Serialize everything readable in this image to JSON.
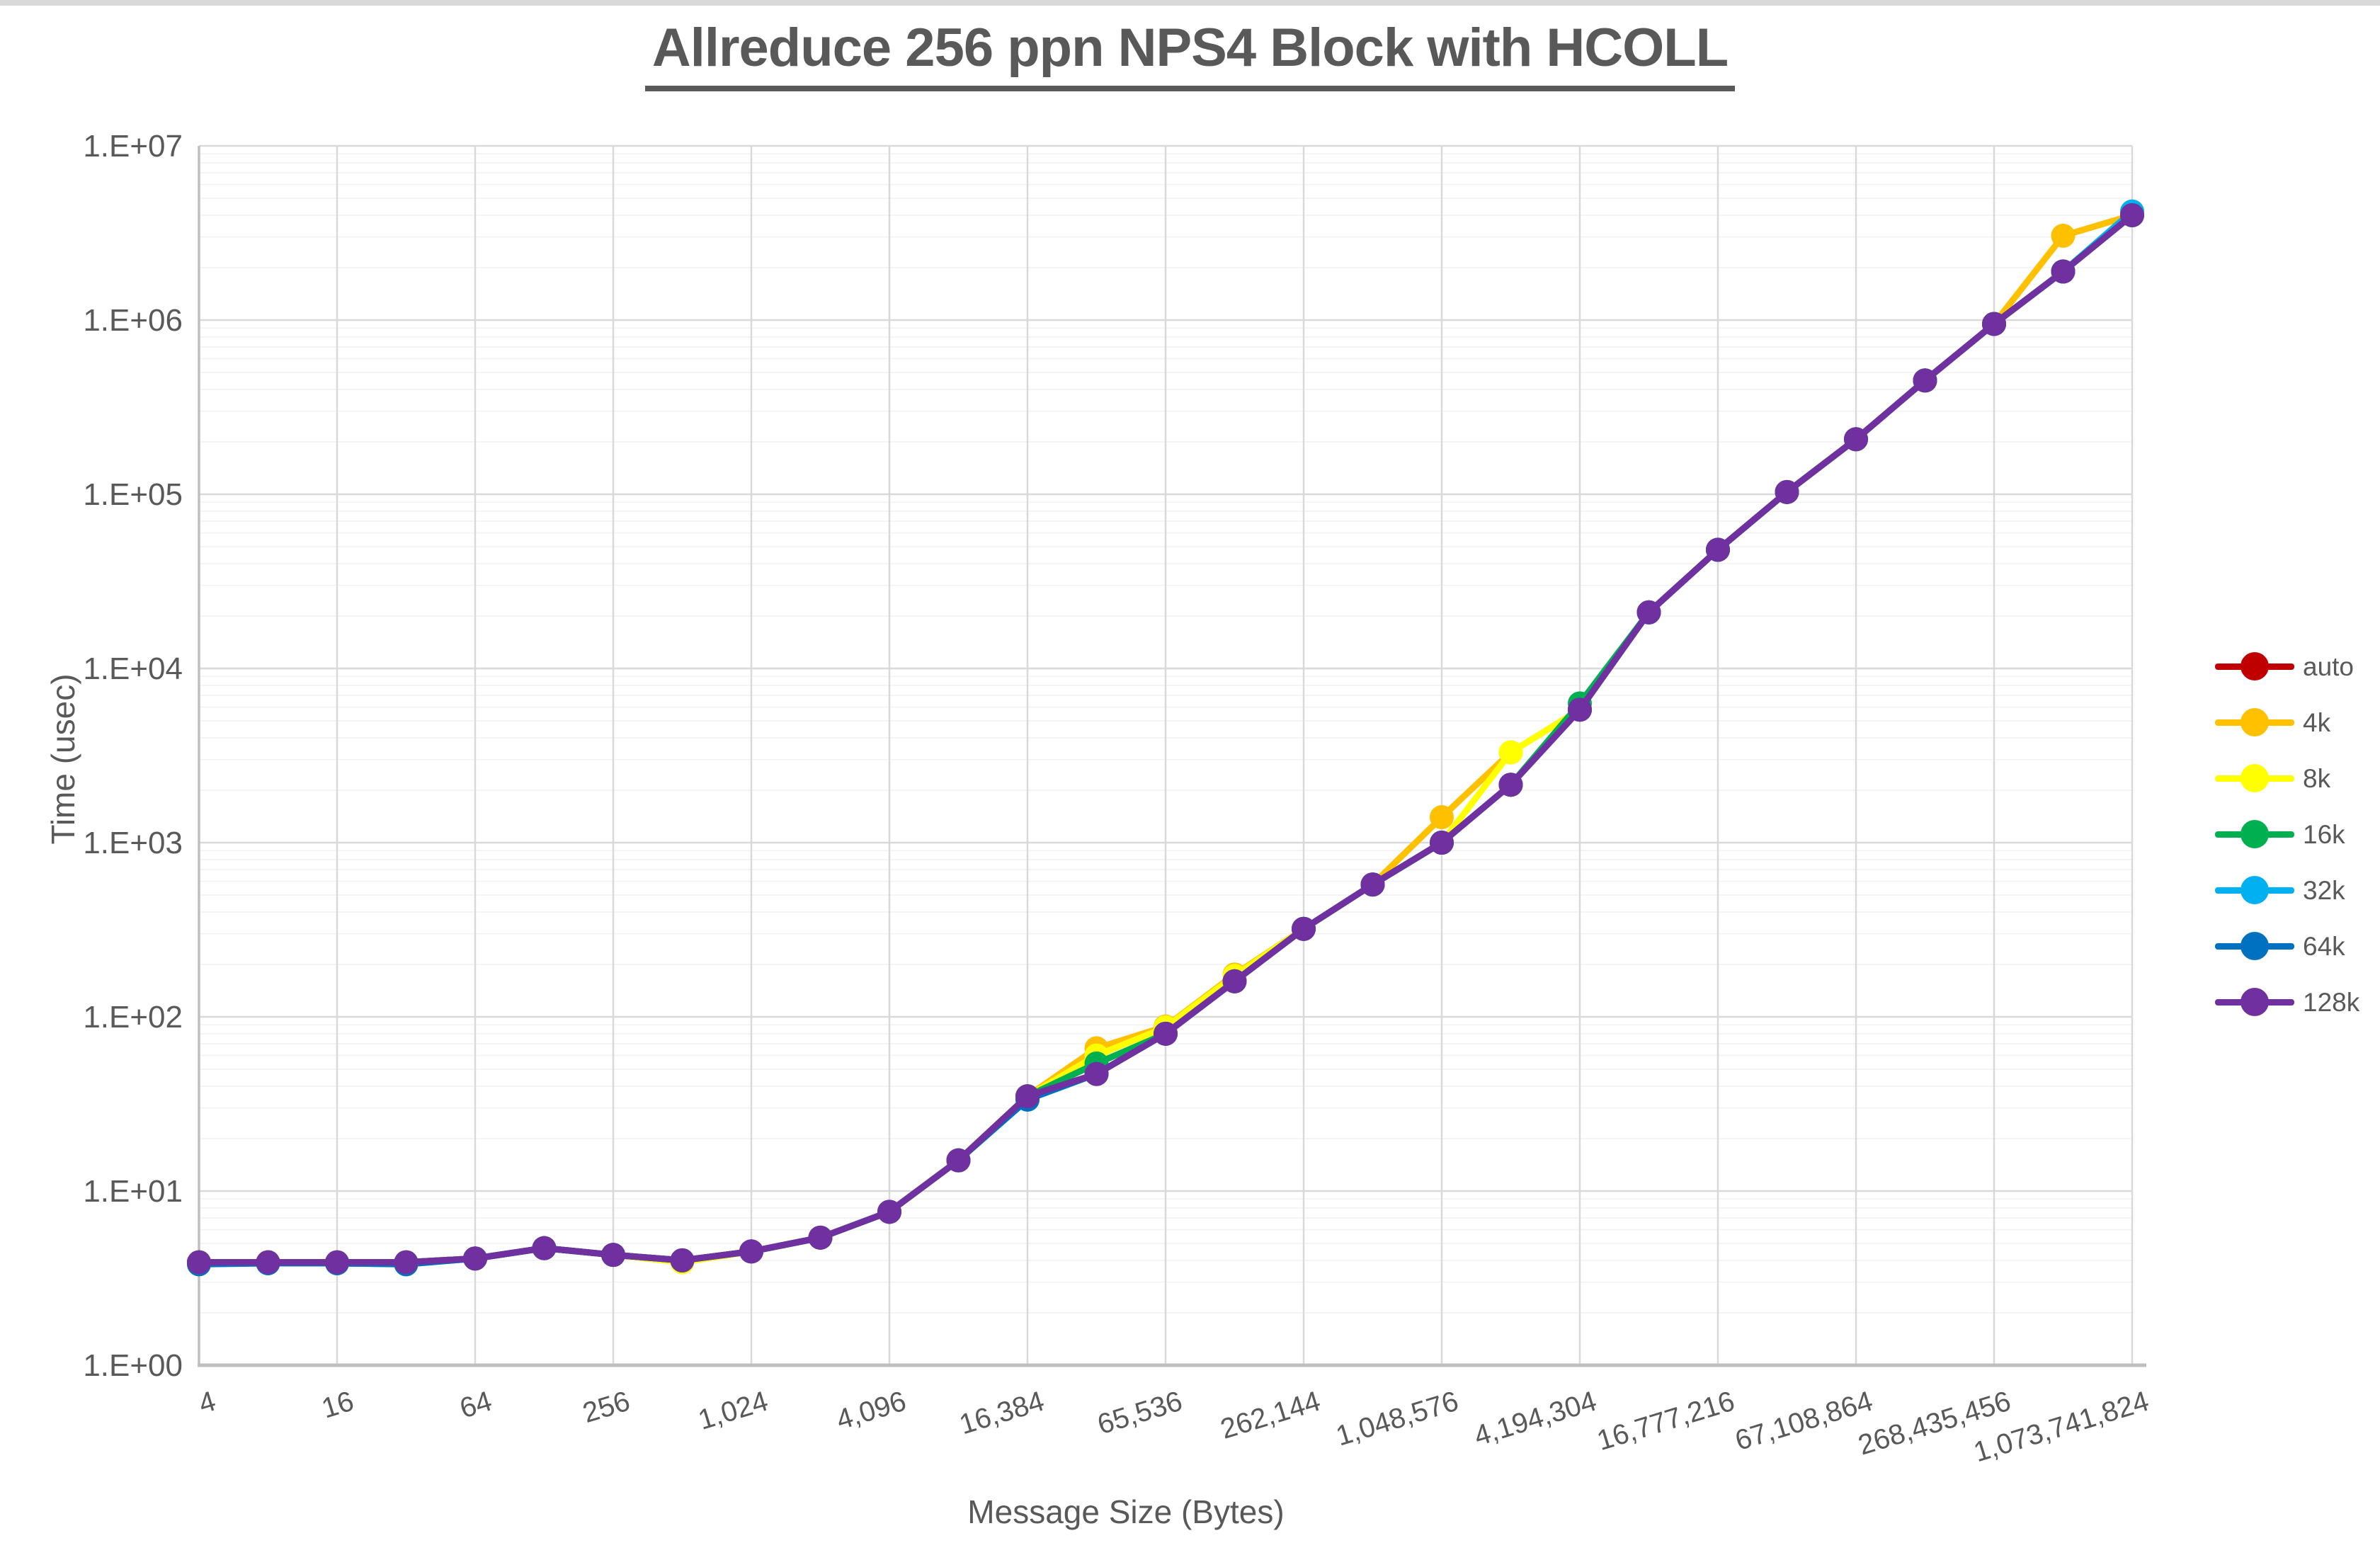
{
  "title": "Allreduce 256 ppn NPS4 Block with HCOLL",
  "chart_data": {
    "type": "line",
    "title": "Allreduce 256 ppn NPS4 Block with HCOLL",
    "xlabel": "Message Size (Bytes)",
    "ylabel": "Time (usec)",
    "x_scale": "log2",
    "y_scale": "log10",
    "ylim": [
      1,
      10000000
    ],
    "grid": "on",
    "legend_position": "right",
    "y_tick_labels": [
      "1.E+00",
      "1.E+01",
      "1.E+02",
      "1.E+03",
      "1.E+04",
      "1.E+05",
      "1.E+06",
      "1.E+07"
    ],
    "x_tick_labels": [
      "4",
      "16",
      "64",
      "256",
      "1,024",
      "4,096",
      "16,384",
      "65,536",
      "262,144",
      "1,048,576",
      "4,194,304",
      "16,777,216",
      "67,108,864",
      "268,435,456",
      "1,073,741,824"
    ],
    "categories": [
      4,
      8,
      16,
      32,
      64,
      128,
      256,
      512,
      1024,
      2048,
      4096,
      8192,
      16384,
      32768,
      65536,
      131072,
      262144,
      524288,
      1048576,
      2097152,
      4194304,
      8388608,
      16777216,
      33554432,
      67108864,
      134217728,
      268435456,
      536870912,
      1073741824
    ],
    "series": [
      {
        "name": "auto",
        "color": "#C00000",
        "values": [
          3.9,
          3.9,
          3.9,
          3.9,
          4.1,
          4.7,
          4.3,
          4.0,
          4.5,
          5.4,
          7.6,
          15,
          35,
          47,
          80,
          160,
          320,
          575,
          1000,
          2150,
          5800,
          21000,
          48000,
          103000,
          207000,
          450000,
          950000,
          1900000,
          4000000
        ]
      },
      {
        "name": "4k",
        "color": "#FFC000",
        "values": [
          3.9,
          3.9,
          3.9,
          3.9,
          4.1,
          4.7,
          4.3,
          4.0,
          4.5,
          5.4,
          7.6,
          15,
          35,
          66,
          88,
          175,
          320,
          575,
          1400,
          3300,
          5800,
          21000,
          48000,
          103000,
          207000,
          450000,
          950000,
          3050000,
          4000000
        ]
      },
      {
        "name": "8k",
        "color": "#FFFF00",
        "values": [
          3.9,
          3.9,
          3.9,
          3.9,
          4.1,
          4.7,
          4.3,
          3.9,
          4.5,
          5.4,
          7.6,
          15,
          35,
          60,
          87,
          172,
          320,
          575,
          1000,
          3300,
          5800,
          21000,
          48000,
          103000,
          207000,
          450000,
          950000,
          1900000,
          4000000
        ]
      },
      {
        "name": "16k",
        "color": "#00B050",
        "values": [
          3.9,
          3.9,
          3.9,
          3.9,
          4.1,
          4.7,
          4.3,
          4.0,
          4.5,
          5.4,
          7.6,
          15,
          35,
          54,
          80,
          160,
          320,
          575,
          1000,
          2150,
          6300,
          21000,
          48000,
          103000,
          207000,
          450000,
          950000,
          1900000,
          4000000
        ]
      },
      {
        "name": "32k",
        "color": "#00B0F0",
        "values": [
          3.85,
          3.85,
          3.85,
          3.8,
          4.1,
          4.7,
          4.3,
          4.0,
          4.5,
          5.4,
          7.6,
          15,
          33.5,
          47,
          80,
          160,
          320,
          575,
          1000,
          2150,
          5800,
          21000,
          48000,
          103000,
          207000,
          450000,
          950000,
          1900000,
          4200000
        ]
      },
      {
        "name": "64k",
        "color": "#0070C0",
        "values": [
          3.8,
          3.85,
          3.85,
          3.8,
          4.1,
          4.7,
          4.3,
          4.0,
          4.5,
          5.4,
          7.6,
          15,
          33.5,
          47,
          80,
          160,
          320,
          575,
          1000,
          2150,
          5800,
          21000,
          48000,
          103000,
          207000,
          450000,
          950000,
          1900000,
          4000000
        ]
      },
      {
        "name": "128k",
        "color": "#7030A0",
        "values": [
          3.9,
          3.9,
          3.9,
          3.9,
          4.1,
          4.7,
          4.3,
          4.0,
          4.5,
          5.4,
          7.6,
          15,
          35,
          47,
          80,
          160,
          320,
          575,
          1000,
          2150,
          5800,
          21000,
          48000,
          103000,
          207000,
          450000,
          950000,
          1900000,
          4000000
        ]
      }
    ]
  }
}
